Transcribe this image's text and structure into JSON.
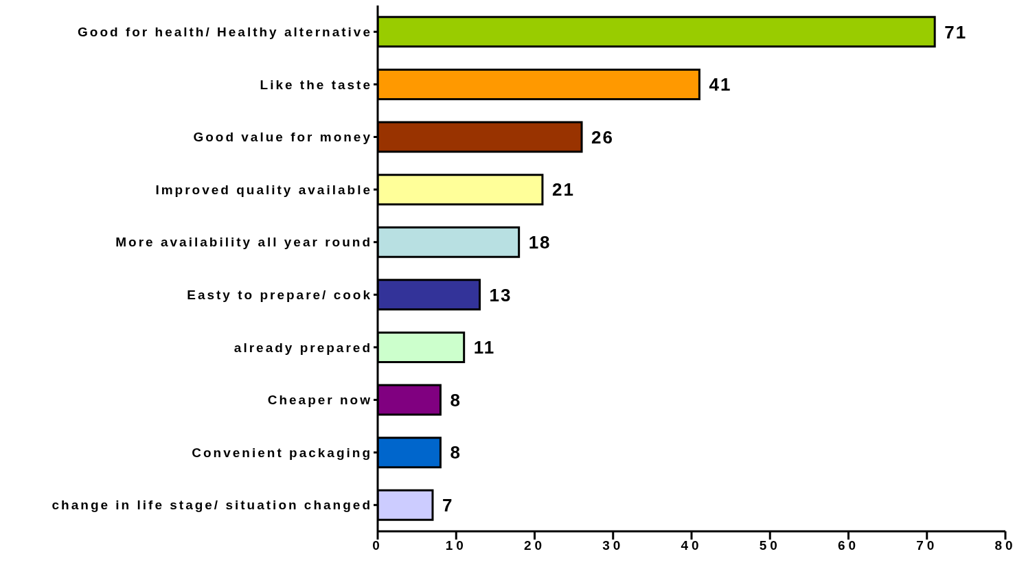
{
  "chart_data": {
    "type": "bar",
    "orientation": "horizontal",
    "categories": [
      "Good for health/ Healthy alternative",
      "Like the taste",
      "Good value for money",
      "Improved quality available",
      "More availability all year round",
      "Easty to prepare/ cook",
      "already prepared",
      "Cheaper now",
      "Convenient packaging",
      "change in life stage/ situation changed"
    ],
    "values": [
      71,
      41,
      26,
      21,
      18,
      13,
      11,
      8,
      8,
      7
    ],
    "colors": [
      "#99cc00",
      "#ff9900",
      "#993300",
      "#ffff99",
      "#b8e0e2",
      "#333399",
      "#ccffcc",
      "#800080",
      "#0066cc",
      "#ccccff"
    ],
    "xlim": [
      0,
      80
    ],
    "xticks": [
      0,
      10,
      20,
      30,
      40,
      50,
      60,
      70,
      80
    ],
    "grid": false,
    "data_labels": true
  }
}
